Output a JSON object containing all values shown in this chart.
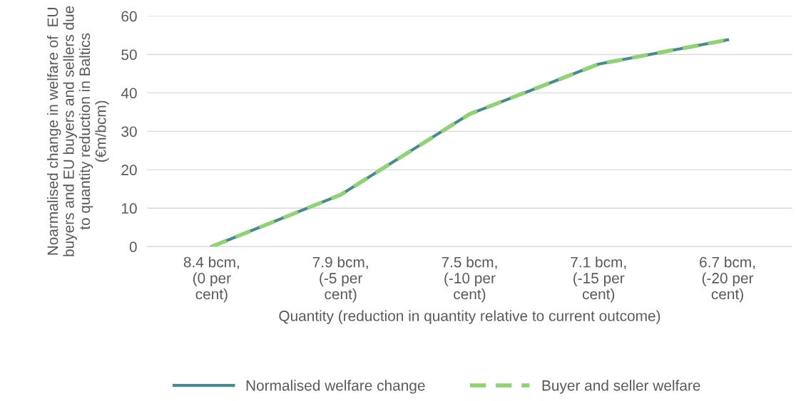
{
  "chart_data": {
    "type": "line",
    "xlabel": "Quantity (reduction in quantity relative to current outcome)",
    "ylabel": "Noarmalised change in welfare of  EU\nbuyers and EU buyers and sellers due\nto quantity reduction in Baltics\n(€m/bcm)",
    "categories": [
      "8.4 bcm,\n(0 per\ncent)",
      "7.9 bcm,\n(-5 per\ncent)",
      "7.5 bcm,\n(-10 per\ncent)",
      "7.1 bcm,\n(-15 per\ncent)",
      "6.7 bcm,\n(-20 per\ncent)"
    ],
    "series": [
      {
        "name": "Normalised welfare change",
        "color": "#4a8a8c",
        "line_style": "solid",
        "values": [
          0,
          13.5,
          34.5,
          47.5,
          53.8
        ]
      },
      {
        "name": "Buyer and seller welfare",
        "color": "#92d07a",
        "line_style": "dashed",
        "values": [
          0,
          13.5,
          34.5,
          47.5,
          53.8
        ]
      }
    ],
    "ylim": [
      0,
      60
    ],
    "yticks": [
      0,
      10,
      20,
      30,
      40,
      50,
      60
    ],
    "grid": "y",
    "legend": "bottom",
    "marker": "none"
  }
}
